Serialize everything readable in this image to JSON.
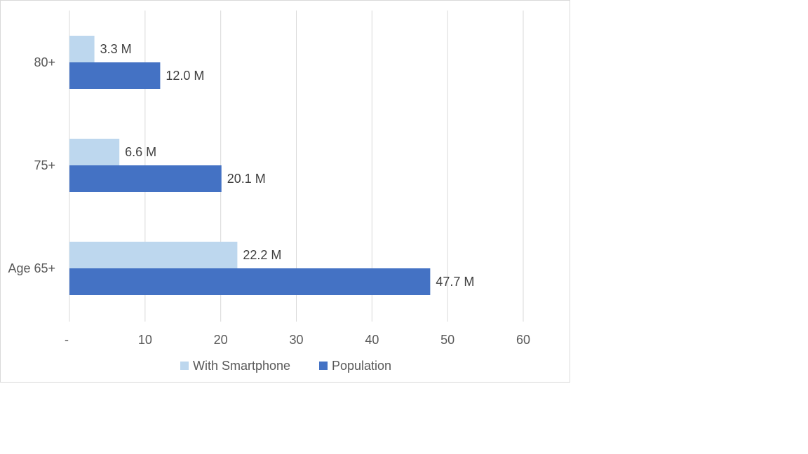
{
  "chart_data": {
    "type": "bar",
    "orientation": "horizontal",
    "categories": [
      "80+",
      "75+",
      "Age 65+"
    ],
    "series": [
      {
        "name": "With Smartphone",
        "color": "#bdd7ee",
        "values": [
          3.3,
          6.6,
          22.2
        ],
        "data_labels": [
          "3.3 M",
          "6.6 M",
          "22.2 M"
        ]
      },
      {
        "name": "Population",
        "color": "#4472c4",
        "values": [
          12.0,
          20.1,
          47.7
        ],
        "data_labels": [
          "12.0 M",
          "20.1 M",
          "47.7 M"
        ]
      }
    ],
    "x_ticks": [
      "-",
      "10",
      "20",
      "30",
      "40",
      "50",
      "60"
    ],
    "xlim": [
      0,
      60
    ],
    "grid": true,
    "grid_color": "#d9d9d9",
    "legend_position": "bottom",
    "title": "",
    "xlabel": "",
    "ylabel": ""
  }
}
